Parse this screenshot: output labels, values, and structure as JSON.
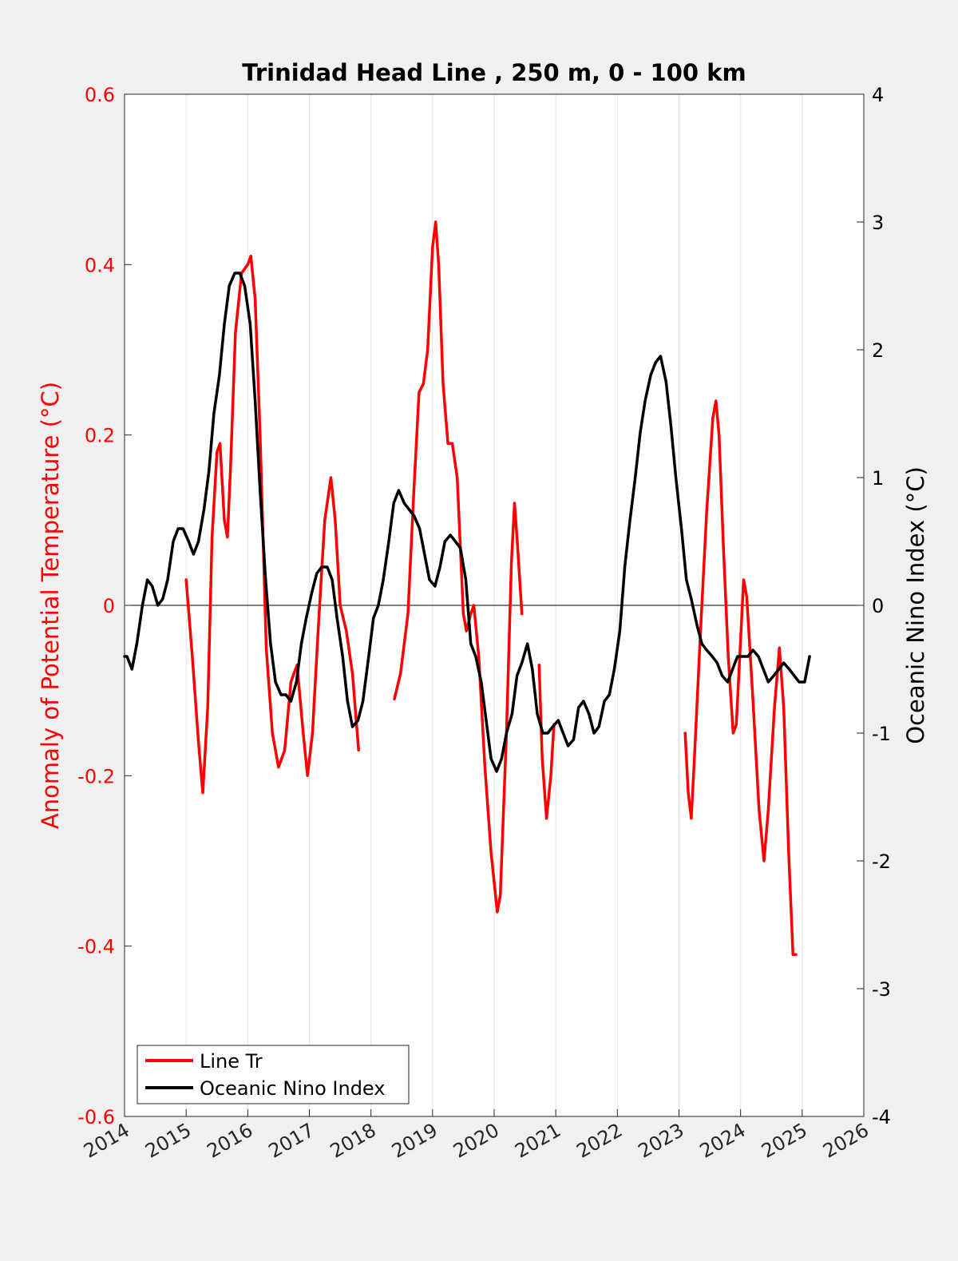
{
  "chart_data": {
    "type": "line",
    "title": "Trinidad Head Line , 250 m, 0 - 100 km",
    "xlabel": "",
    "ylabel_left": "Anomaly of Potential Temperature (°C)",
    "ylabel_right": "Oceanic Nino Index (°C)",
    "xlim": [
      2014,
      2026
    ],
    "ylim_left": [
      -0.6,
      0.6
    ],
    "ylim_right": [
      -4,
      4
    ],
    "x_ticks": [
      "2014",
      "2015",
      "2016",
      "2017",
      "2018",
      "2019",
      "2020",
      "2021",
      "2022",
      "2023",
      "2024",
      "2025",
      "2026"
    ],
    "y_left_ticks": [
      "-0.6",
      "-0.4",
      "-0.2",
      "0",
      "0.2",
      "0.4",
      "0.6"
    ],
    "y_right_ticks": [
      "-4",
      "-3",
      "-2",
      "-1",
      "0",
      "1",
      "2",
      "3",
      "4"
    ],
    "grid": "vertical",
    "zero_line": true,
    "legend_position": "bottom-left",
    "colors": {
      "line_tr": "#ff0000",
      "oni": "#000000",
      "left_axis": "#ff0000",
      "right_axis": "#000000"
    },
    "series": [
      {
        "name": "Line Tr",
        "axis": "left",
        "color": "#ff0000",
        "segments": [
          [
            [
              2015.0,
              0.03
            ],
            [
              2015.1,
              -0.06
            ],
            [
              2015.2,
              -0.16
            ],
            [
              2015.27,
              -0.22
            ],
            [
              2015.35,
              -0.12
            ],
            [
              2015.42,
              0.08
            ],
            [
              2015.5,
              0.18
            ],
            [
              2015.55,
              0.19
            ],
            [
              2015.62,
              0.1
            ],
            [
              2015.67,
              0.08
            ],
            [
              2015.72,
              0.16
            ],
            [
              2015.8,
              0.32
            ],
            [
              2015.9,
              0.39
            ],
            [
              2016.0,
              0.4
            ],
            [
              2016.05,
              0.41
            ],
            [
              2016.12,
              0.36
            ],
            [
              2016.2,
              0.2
            ],
            [
              2016.3,
              -0.05
            ],
            [
              2016.4,
              -0.15
            ],
            [
              2016.5,
              -0.19
            ],
            [
              2016.6,
              -0.17
            ],
            [
              2016.7,
              -0.09
            ],
            [
              2016.8,
              -0.07
            ],
            [
              2016.9,
              -0.15
            ],
            [
              2016.97,
              -0.2
            ],
            [
              2017.05,
              -0.15
            ],
            [
              2017.15,
              -0.02
            ],
            [
              2017.25,
              0.1
            ],
            [
              2017.35,
              0.15
            ],
            [
              2017.42,
              0.1
            ],
            [
              2017.5,
              0.0
            ],
            [
              2017.6,
              -0.03
            ],
            [
              2017.7,
              -0.08
            ],
            [
              2017.8,
              -0.17
            ]
          ],
          [
            [
              2018.38,
              -0.11
            ],
            [
              2018.48,
              -0.08
            ],
            [
              2018.6,
              -0.01
            ],
            [
              2018.7,
              0.14
            ],
            [
              2018.78,
              0.25
            ],
            [
              2018.85,
              0.26
            ],
            [
              2018.92,
              0.3
            ],
            [
              2019.0,
              0.42
            ],
            [
              2019.05,
              0.45
            ],
            [
              2019.1,
              0.4
            ],
            [
              2019.17,
              0.26
            ],
            [
              2019.25,
              0.19
            ],
            [
              2019.32,
              0.19
            ],
            [
              2019.4,
              0.15
            ],
            [
              2019.5,
              -0.01
            ],
            [
              2019.55,
              -0.03
            ],
            [
              2019.62,
              -0.01
            ],
            [
              2019.67,
              0.0
            ],
            [
              2019.75,
              -0.06
            ],
            [
              2019.85,
              -0.19
            ],
            [
              2019.95,
              -0.29
            ],
            [
              2020.05,
              -0.36
            ],
            [
              2020.1,
              -0.34
            ],
            [
              2020.2,
              -0.15
            ],
            [
              2020.28,
              0.05
            ],
            [
              2020.33,
              0.12
            ],
            [
              2020.38,
              0.07
            ],
            [
              2020.45,
              -0.01
            ]
          ],
          [
            [
              2020.73,
              -0.07
            ],
            [
              2020.78,
              -0.18
            ],
            [
              2020.85,
              -0.25
            ],
            [
              2020.92,
              -0.2
            ],
            [
              2020.97,
              -0.14
            ]
          ],
          [
            [
              2023.1,
              -0.15
            ],
            [
              2023.15,
              -0.22
            ],
            [
              2023.2,
              -0.25
            ],
            [
              2023.25,
              -0.18
            ],
            [
              2023.35,
              -0.03
            ],
            [
              2023.45,
              0.11
            ],
            [
              2023.55,
              0.22
            ],
            [
              2023.6,
              0.24
            ],
            [
              2023.65,
              0.2
            ],
            [
              2023.72,
              0.07
            ],
            [
              2023.8,
              -0.06
            ],
            [
              2023.88,
              -0.15
            ],
            [
              2023.93,
              -0.14
            ],
            [
              2024.0,
              -0.04
            ],
            [
              2024.05,
              0.03
            ],
            [
              2024.1,
              0.01
            ],
            [
              2024.2,
              -0.11
            ],
            [
              2024.3,
              -0.24
            ],
            [
              2024.38,
              -0.3
            ],
            [
              2024.45,
              -0.24
            ],
            [
              2024.55,
              -0.12
            ],
            [
              2024.63,
              -0.05
            ],
            [
              2024.7,
              -0.12
            ],
            [
              2024.78,
              -0.29
            ],
            [
              2024.85,
              -0.41
            ],
            [
              2024.9,
              -0.41
            ]
          ]
        ]
      },
      {
        "name": "Oceanic Nino Index",
        "axis": "right",
        "color": "#000000",
        "x": [
          2014.0,
          2014.04,
          2014.12,
          2014.2,
          2014.29,
          2014.37,
          2014.45,
          2014.54,
          2014.62,
          2014.7,
          2014.79,
          2014.87,
          2014.95,
          2015.04,
          2015.12,
          2015.2,
          2015.29,
          2015.37,
          2015.45,
          2015.54,
          2015.62,
          2015.7,
          2015.79,
          2015.87,
          2015.95,
          2016.04,
          2016.12,
          2016.2,
          2016.29,
          2016.37,
          2016.45,
          2016.54,
          2016.62,
          2016.7,
          2016.79,
          2016.87,
          2016.95,
          2017.04,
          2017.12,
          2017.2,
          2017.29,
          2017.37,
          2017.45,
          2017.54,
          2017.62,
          2017.7,
          2017.79,
          2017.87,
          2017.95,
          2018.04,
          2018.12,
          2018.2,
          2018.29,
          2018.37,
          2018.45,
          2018.54,
          2018.62,
          2018.7,
          2018.79,
          2018.87,
          2018.95,
          2019.04,
          2019.12,
          2019.2,
          2019.29,
          2019.37,
          2019.45,
          2019.54,
          2019.62,
          2019.7,
          2019.79,
          2019.87,
          2019.95,
          2020.04,
          2020.12,
          2020.2,
          2020.29,
          2020.37,
          2020.45,
          2020.54,
          2020.62,
          2020.7,
          2020.79,
          2020.87,
          2020.95,
          2021.04,
          2021.12,
          2021.2,
          2021.29,
          2021.37,
          2021.45,
          2021.54,
          2021.62,
          2021.7,
          2021.79,
          2021.87,
          2021.95,
          2022.04,
          2022.12,
          2022.2,
          2022.29,
          2022.37,
          2022.45,
          2022.54,
          2022.62,
          2022.7,
          2022.79,
          2022.87,
          2022.95,
          2023.04,
          2023.12,
          2023.2,
          2023.29,
          2023.37,
          2023.45,
          2023.54,
          2023.62,
          2023.7,
          2023.79,
          2023.87,
          2023.95,
          2024.04,
          2024.12,
          2024.2,
          2024.29,
          2024.37,
          2024.45,
          2024.54,
          2024.62,
          2024.7,
          2024.79,
          2024.87,
          2024.95,
          2025.04,
          2025.12
        ],
        "values": [
          -0.4,
          -0.4,
          -0.5,
          -0.3,
          0.0,
          0.2,
          0.15,
          0.0,
          0.05,
          0.2,
          0.5,
          0.6,
          0.6,
          0.5,
          0.4,
          0.5,
          0.75,
          1.05,
          1.5,
          1.8,
          2.2,
          2.5,
          2.6,
          2.6,
          2.5,
          2.2,
          1.6,
          0.9,
          0.2,
          -0.3,
          -0.6,
          -0.7,
          -0.7,
          -0.75,
          -0.6,
          -0.3,
          -0.1,
          0.1,
          0.25,
          0.3,
          0.3,
          0.2,
          -0.1,
          -0.4,
          -0.75,
          -0.95,
          -0.9,
          -0.75,
          -0.45,
          -0.1,
          0.0,
          0.2,
          0.5,
          0.8,
          0.9,
          0.8,
          0.75,
          0.7,
          0.6,
          0.4,
          0.2,
          0.15,
          0.3,
          0.5,
          0.55,
          0.5,
          0.45,
          0.2,
          -0.3,
          -0.4,
          -0.6,
          -0.9,
          -1.2,
          -1.3,
          -1.2,
          -1.0,
          -0.85,
          -0.55,
          -0.45,
          -0.3,
          -0.5,
          -0.85,
          -1.0,
          -1.0,
          -0.95,
          -0.9,
          -1.0,
          -1.1,
          -1.05,
          -0.8,
          -0.75,
          -0.85,
          -1.0,
          -0.95,
          -0.75,
          -0.7,
          -0.5,
          -0.2,
          0.3,
          0.65,
          1.0,
          1.35,
          1.6,
          1.8,
          1.9,
          1.95,
          1.75,
          1.4,
          1.0,
          0.6,
          0.2,
          0.05,
          -0.15,
          -0.3,
          -0.35,
          -0.4,
          -0.45,
          -0.55,
          -0.6,
          -0.5,
          -0.4,
          -0.4,
          -0.4,
          -0.35,
          -0.4,
          -0.5,
          -0.6,
          -0.55,
          -0.5,
          -0.45,
          -0.5,
          -0.55,
          -0.6,
          -0.6,
          -0.4
        ]
      }
    ]
  }
}
